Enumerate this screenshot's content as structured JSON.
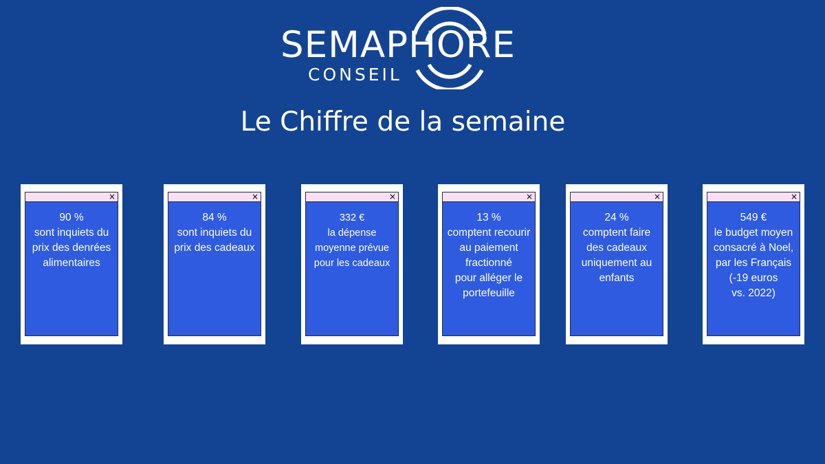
{
  "logo": {
    "main": "SEMAPHORE",
    "sub": "CONSEIL"
  },
  "headline": "Le Chiffre de la semaine",
  "cards": [
    {
      "figure": "90 %",
      "text": "sont inquiets du\nprix des denrées\nalimentaires",
      "close": "×"
    },
    {
      "figure": "84 %",
      "text": "sont inquiets du\nprix des cadeaux",
      "close": "×"
    },
    {
      "figure": "332 €",
      "text": "la dépense\nmoyenne prévue\npour les cadeaux",
      "close": "×"
    },
    {
      "figure": "13 %",
      "text": "comptent recourir\nau paiement\nfractionné\npour alléger le\nportefeuille",
      "close": "×"
    },
    {
      "figure": "24 %",
      "text": "comptent faire\ndes cadeaux\nuniquement au\nenfants",
      "close": "×"
    },
    {
      "figure": "549 €",
      "text": "le budget moyen\nconsacré à Noel,\npar les Français\n(-19 euros\nvs. 2022)",
      "close": "×"
    }
  ],
  "colors": {
    "background": "#134393",
    "card_frame": "#ffffff",
    "card_fill": "#2e5be0",
    "titlebar": "#fbe0f4"
  }
}
